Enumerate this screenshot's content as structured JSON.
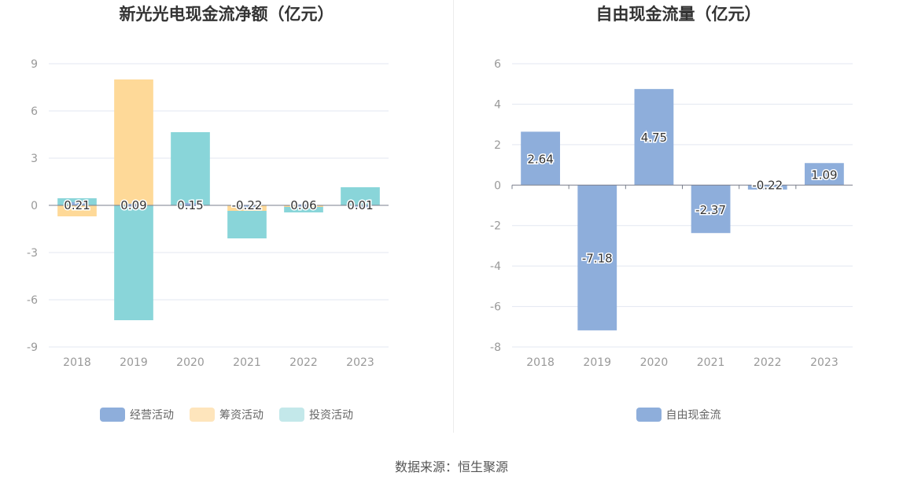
{
  "source_text": "数据来源：恒生聚源",
  "chart_data": [
    {
      "type": "bar",
      "stacked": true,
      "title": "新光光电现金流净额（亿元）",
      "categories": [
        "2018",
        "2019",
        "2020",
        "2021",
        "2022",
        "2023"
      ],
      "series": [
        {
          "name": "经营活动",
          "color": "#8eaedb",
          "values": [
            0.21,
            0.09,
            0.15,
            -0.22,
            0.06,
            0.01
          ]
        },
        {
          "name": "筹资活动",
          "color": "#fed998",
          "values": [
            -0.7,
            8.0,
            0.0,
            -0.35,
            -0.1,
            0.0
          ]
        },
        {
          "name": "投资活动",
          "color": "#89d5d9",
          "values": [
            0.45,
            -7.3,
            4.65,
            -1.75,
            -0.35,
            1.15
          ]
        }
      ],
      "legend_colors": [
        "#8eaedb",
        "#fee5bc",
        "#c3e8ea"
      ],
      "data_labels_series": 0,
      "yticks": [
        9,
        6,
        3,
        0,
        -3,
        -6,
        -9
      ],
      "ylim": [
        -9,
        9
      ],
      "grid": true,
      "legend": "bottom-center"
    },
    {
      "type": "bar",
      "title": "自由现金流量（亿元）",
      "categories": [
        "2018",
        "2019",
        "2020",
        "2021",
        "2022",
        "2023"
      ],
      "series": [
        {
          "name": "自由现金流",
          "color": "#8eaedb",
          "values": [
            2.64,
            -7.18,
            4.75,
            -2.37,
            -0.22,
            1.09
          ]
        }
      ],
      "data_labels_series": 0,
      "yticks": [
        6,
        4,
        2,
        0,
        -2,
        -4,
        -6,
        -8
      ],
      "ylim": [
        -8,
        6
      ],
      "grid": true,
      "legend": "bottom-center"
    }
  ]
}
